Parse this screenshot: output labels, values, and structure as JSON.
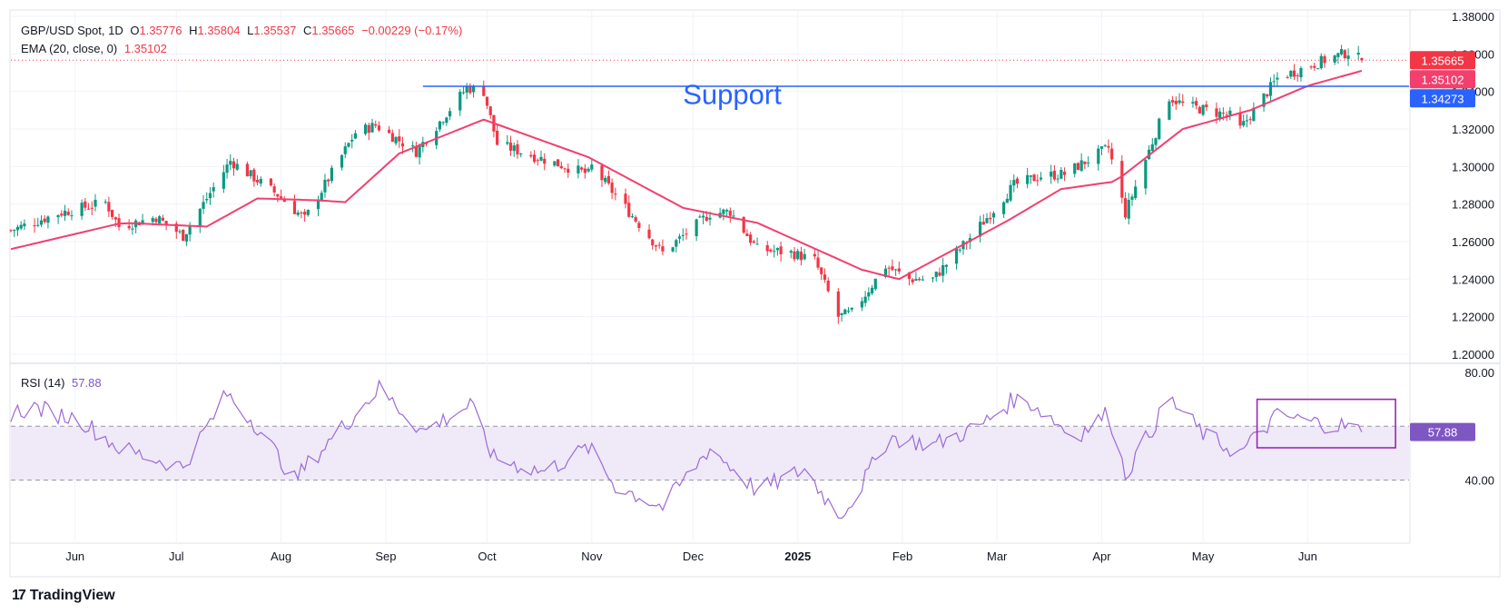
{
  "header": {
    "symbol": "GBP/USD Spot, 1D",
    "open_label": "O",
    "open": "1.35776",
    "high_label": "H",
    "high": "1.35804",
    "low_label": "L",
    "low": "1.35537",
    "close_label": "C",
    "close": "1.35665",
    "change": "−0.00229 (−0.17%)",
    "ema_label": "EMA (20, close, 0)",
    "ema_value": "1.35102",
    "rsi_label": "RSI (14)",
    "rsi_value": "57.88"
  },
  "colors": {
    "up": "#089981",
    "down": "#f23645",
    "ema": "#f23f6e",
    "support": "#2962ff",
    "rsi": "#9c6ad6",
    "rsi_box": "#9c27b0",
    "rsi_band": "#efe9f8"
  },
  "annotation": {
    "support_text": "Support"
  },
  "brand": {
    "name": "TradingView"
  },
  "chart_data": {
    "type": "candlestick",
    "title": "GBP/USD Spot, 1D",
    "x_tick_labels": [
      "Jun",
      "Jul",
      "Aug",
      "Sep",
      "Oct",
      "Nov",
      "Dec",
      "2025",
      "Feb",
      "Mar",
      "Apr",
      "May",
      "Jun"
    ],
    "x_tick_dates": [
      "2024-06-01",
      "2024-07-01",
      "2024-08-01",
      "2024-09-01",
      "2024-10-01",
      "2024-11-01",
      "2024-12-01",
      "2025-01-01",
      "2025-02-01",
      "2025-03-01",
      "2025-04-01",
      "2025-05-01",
      "2025-06-01"
    ],
    "x_range": [
      "2024-05-13",
      "2025-07-01"
    ],
    "price_axis": {
      "ticks": [
        "1.38000",
        "1.36000",
        "1.34000",
        "1.32000",
        "1.30000",
        "1.28000",
        "1.26000",
        "1.24000",
        "1.22000",
        "1.20000"
      ],
      "ylim": [
        1.2,
        1.38
      ]
    },
    "price_labels": [
      {
        "name": "close",
        "value": 1.35665,
        "text": "1.35665",
        "color": "#f23645"
      },
      {
        "name": "ema",
        "value": 1.35102,
        "text": "1.35102",
        "color": "#f23f6e"
      },
      {
        "name": "support",
        "value": 1.34273,
        "text": "1.34273",
        "color": "#2962ff"
      }
    ],
    "support_line": {
      "level": 1.34273,
      "from": "2024-09-12",
      "to": "2025-07-01"
    },
    "price_anchors": [
      [
        "2024-05-13",
        1.266
      ],
      [
        "2024-05-27",
        1.275
      ],
      [
        "2024-06-10",
        1.281
      ],
      [
        "2024-06-14",
        1.268
      ],
      [
        "2024-06-25",
        1.273
      ],
      [
        "2024-07-03",
        1.263
      ],
      [
        "2024-07-17",
        1.303
      ],
      [
        "2024-07-31",
        1.285
      ],
      [
        "2024-08-08",
        1.272
      ],
      [
        "2024-08-23",
        1.318
      ],
      [
        "2024-08-29",
        1.322
      ],
      [
        "2024-09-10",
        1.308
      ],
      [
        "2024-09-25",
        1.342
      ],
      [
        "2024-09-30",
        1.34
      ],
      [
        "2024-10-04",
        1.312
      ],
      [
        "2024-10-31",
        1.296
      ],
      [
        "2024-11-01",
        1.3
      ],
      [
        "2024-11-22",
        1.254
      ],
      [
        "2024-12-06",
        1.275
      ],
      [
        "2024-12-12",
        1.276
      ],
      [
        "2024-12-20",
        1.256
      ],
      [
        "2024-12-30",
        1.254
      ],
      [
        "2025-01-06",
        1.25
      ],
      [
        "2025-01-13",
        1.22
      ],
      [
        "2025-01-17",
        1.222
      ],
      [
        "2025-01-27",
        1.247
      ],
      [
        "2025-02-03",
        1.24
      ],
      [
        "2025-02-10",
        1.24
      ],
      [
        "2025-02-21",
        1.262
      ],
      [
        "2025-03-06",
        1.29
      ],
      [
        "2025-03-14",
        1.295
      ],
      [
        "2025-03-21",
        1.296
      ],
      [
        "2025-04-03",
        1.31
      ],
      [
        "2025-04-08",
        1.275
      ],
      [
        "2025-04-21",
        1.337
      ],
      [
        "2025-04-25",
        1.333
      ],
      [
        "2025-05-09",
        1.327
      ],
      [
        "2025-05-12",
        1.32
      ],
      [
        "2025-05-23",
        1.347
      ],
      [
        "2025-06-05",
        1.356
      ],
      [
        "2025-06-13",
        1.361
      ],
      [
        "2025-06-17",
        1.3566
      ]
    ],
    "ema_anchors": [
      [
        "2024-05-13",
        1.256
      ],
      [
        "2024-06-15",
        1.27
      ],
      [
        "2024-07-10",
        1.268
      ],
      [
        "2024-07-25",
        1.283
      ],
      [
        "2024-08-12",
        1.282
      ],
      [
        "2024-08-20",
        1.281
      ],
      [
        "2024-09-05",
        1.307
      ],
      [
        "2024-09-30",
        1.325
      ],
      [
        "2024-10-31",
        1.305
      ],
      [
        "2024-11-28",
        1.278
      ],
      [
        "2024-12-20",
        1.27
      ],
      [
        "2025-01-20",
        1.245
      ],
      [
        "2025-01-31",
        1.24
      ],
      [
        "2025-03-04",
        1.271
      ],
      [
        "2025-03-20",
        1.288
      ],
      [
        "2025-04-05",
        1.292
      ],
      [
        "2025-04-25",
        1.32
      ],
      [
        "2025-05-15",
        1.33
      ],
      [
        "2025-06-01",
        1.343
      ],
      [
        "2025-06-17",
        1.351
      ]
    ],
    "rsi": {
      "name": "RSI (14)",
      "ticks": [
        "80.00",
        "40.00"
      ],
      "ylim": [
        24,
        80
      ],
      "levels": [
        60,
        40
      ],
      "last": 57.88,
      "anchors": [
        [
          "2024-05-13",
          65
        ],
        [
          "2024-05-20",
          67
        ],
        [
          "2024-06-03",
          62
        ],
        [
          "2024-06-14",
          52
        ],
        [
          "2024-06-24",
          48
        ],
        [
          "2024-07-03",
          45
        ],
        [
          "2024-07-16",
          72
        ],
        [
          "2024-07-25",
          60
        ],
        [
          "2024-08-05",
          40
        ],
        [
          "2024-08-09",
          46
        ],
        [
          "2024-08-30",
          74
        ],
        [
          "2024-09-12",
          58
        ],
        [
          "2024-09-26",
          68
        ],
        [
          "2024-10-03",
          48
        ],
        [
          "2024-10-18",
          43
        ],
        [
          "2024-10-31",
          52
        ],
        [
          "2024-11-08",
          38
        ],
        [
          "2024-11-22",
          30
        ],
        [
          "2024-12-06",
          52
        ],
        [
          "2024-12-20",
          36
        ],
        [
          "2025-01-03",
          44
        ],
        [
          "2025-01-13",
          27
        ],
        [
          "2025-01-17",
          32
        ],
        [
          "2025-01-28",
          56
        ],
        [
          "2025-02-10",
          53
        ],
        [
          "2025-02-24",
          60
        ],
        [
          "2025-03-06",
          70
        ],
        [
          "2025-03-12",
          68
        ],
        [
          "2025-03-24",
          56
        ],
        [
          "2025-04-03",
          65
        ],
        [
          "2025-04-08",
          42
        ],
        [
          "2025-04-21",
          70
        ],
        [
          "2025-05-02",
          56
        ],
        [
          "2025-05-12",
          50
        ],
        [
          "2025-05-23",
          64
        ],
        [
          "2025-06-05",
          61
        ],
        [
          "2025-06-13",
          60
        ],
        [
          "2025-06-17",
          57.88
        ]
      ],
      "highlight_box": {
        "from": "2025-05-17",
        "to": "2025-06-27",
        "low": 52,
        "high": 70
      }
    }
  }
}
